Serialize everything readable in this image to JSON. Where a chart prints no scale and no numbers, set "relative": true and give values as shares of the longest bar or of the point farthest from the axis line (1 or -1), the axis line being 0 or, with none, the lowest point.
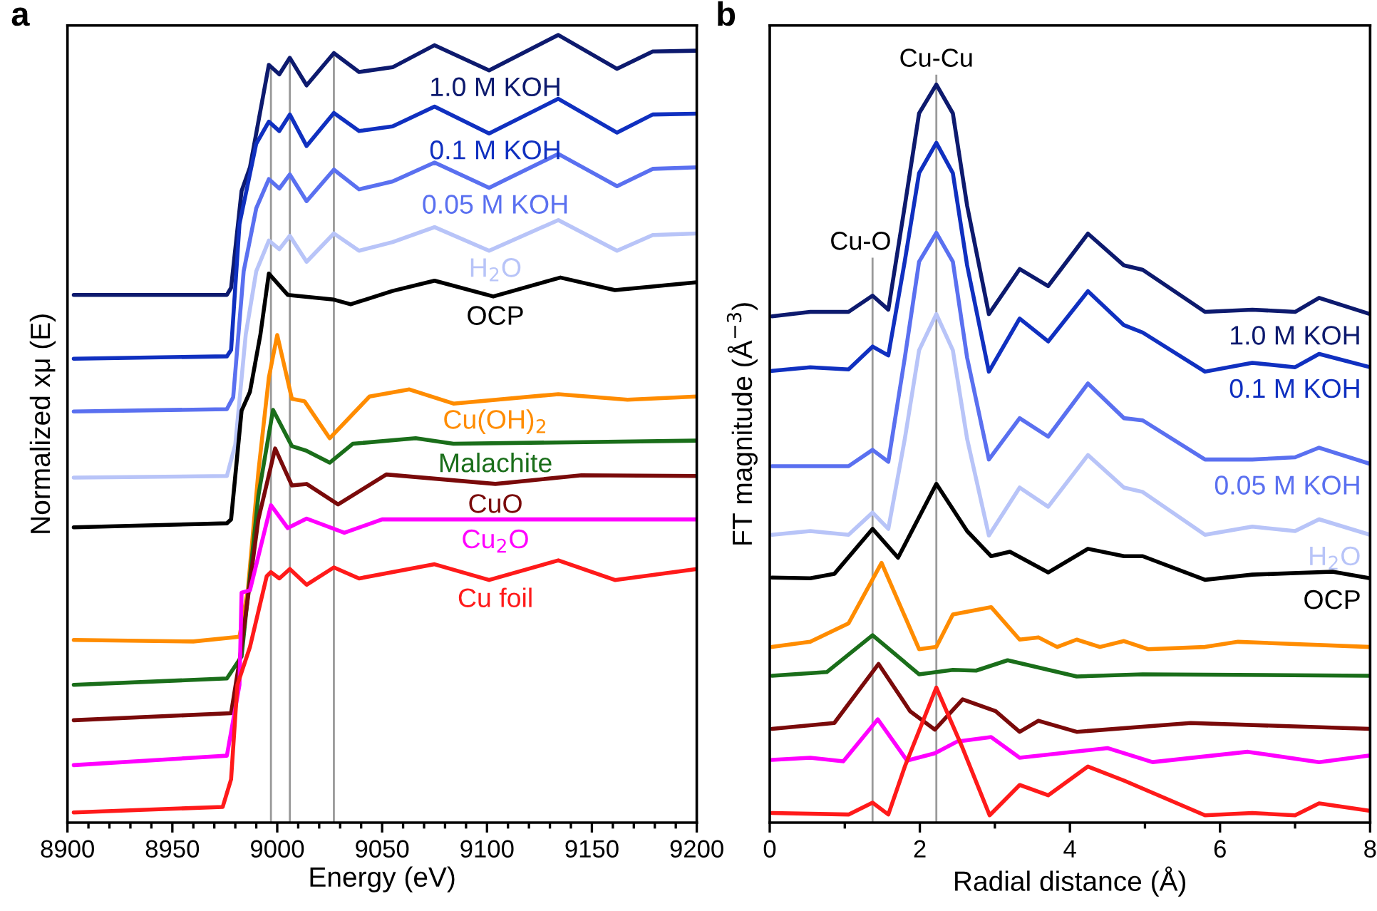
{
  "chart_data": [
    {
      "type": "line",
      "title": "a",
      "xlabel": "Energy (eV)",
      "ylabel": "Normalized xμ (E)",
      "relative": true,
      "xlim": [
        8900,
        9200
      ],
      "xticks": [
        8900,
        {
          "value": 8910,
          "label": null
        },
        {
          "value": 8920,
          "label": null
        },
        {
          "value": 8930,
          "label": null
        },
        {
          "value": 8940,
          "label": null
        },
        8950,
        {
          "value": 8960,
          "label": null
        },
        {
          "value": 8970,
          "label": null
        },
        {
          "value": 8980,
          "label": null
        },
        {
          "value": 8990,
          "label": null
        },
        9000,
        {
          "value": 9010,
          "label": null
        },
        {
          "value": 9020,
          "label": null
        },
        {
          "value": 9030,
          "label": null
        },
        {
          "value": 9040,
          "label": null
        },
        9050,
        {
          "value": 9060,
          "label": null
        },
        {
          "value": 9070,
          "label": null
        },
        {
          "value": 9080,
          "label": null
        },
        {
          "value": 9090,
          "label": null
        },
        9100,
        {
          "value": 9110,
          "label": null
        },
        {
          "value": 9120,
          "label": null
        },
        {
          "value": 9130,
          "label": null
        },
        {
          "value": 9140,
          "label": null
        },
        9150,
        {
          "value": 9160,
          "label": null
        },
        {
          "value": 9170,
          "label": null
        },
        {
          "value": 9180,
          "label": null
        },
        {
          "value": 9190,
          "label": null
        },
        9200
      ],
      "ref_lines": [
        {
          "axis": "x",
          "value": 8997,
          "color": "#999999"
        },
        {
          "axis": "x",
          "value": 9006,
          "color": "#999999"
        },
        {
          "axis": "x",
          "value": 9027,
          "color": "#999999"
        }
      ],
      "series": [
        {
          "name": "1.0 M KOH",
          "color": "#0d1a6e",
          "x": [
            8903,
            8976,
            8978,
            8983,
            8987,
            8996,
            9001,
            9006,
            9014,
            9027,
            9039,
            9055,
            9075,
            9101,
            9134,
            9162,
            9179,
            9200
          ],
          "values": [
            0.67,
            0.67,
            0.679,
            0.802,
            0.832,
            0.962,
            0.95,
            0.971,
            0.936,
            0.977,
            0.953,
            0.959,
            0.987,
            0.955,
            1.0,
            0.957,
            0.979,
            0.98
          ]
        },
        {
          "name": "0.1 M KOH",
          "color": "#1030c0",
          "x": [
            8903,
            8976,
            8978,
            8982,
            8990,
            8996,
            9001,
            9006,
            9014,
            9027,
            9039,
            9055,
            9075,
            9101,
            9134,
            9162,
            9179,
            9200
          ],
          "values": [
            0.589,
            0.592,
            0.6,
            0.76,
            0.862,
            0.89,
            0.878,
            0.899,
            0.859,
            0.901,
            0.878,
            0.884,
            0.909,
            0.875,
            0.919,
            0.876,
            0.899,
            0.9
          ]
        },
        {
          "name": "0.05 M KOH",
          "color": "#5a70f0",
          "x": [
            8903,
            8976,
            8979,
            8984,
            8990,
            8996,
            9001,
            9006,
            9014,
            9027,
            9039,
            9055,
            9075,
            9101,
            9134,
            9162,
            9179,
            9200
          ],
          "values": [
            0.522,
            0.525,
            0.54,
            0.7,
            0.78,
            0.817,
            0.805,
            0.823,
            0.789,
            0.829,
            0.804,
            0.814,
            0.838,
            0.806,
            0.849,
            0.808,
            0.83,
            0.832
          ]
        },
        {
          "name": "H$_{2}$O",
          "color": "#b8c4f8",
          "x": [
            8903,
            8976,
            8980,
            8985,
            8990,
            8996,
            9001,
            9006,
            9014,
            9027,
            9039,
            9055,
            9075,
            9101,
            9134,
            9162,
            9179,
            9200
          ],
          "values": [
            0.438,
            0.44,
            0.48,
            0.62,
            0.7,
            0.739,
            0.728,
            0.745,
            0.712,
            0.748,
            0.726,
            0.737,
            0.756,
            0.726,
            0.765,
            0.726,
            0.746,
            0.748
          ]
        },
        {
          "name": "OCP",
          "color": "#000000",
          "x": [
            8903,
            8976,
            8978,
            8983,
            8987,
            8992,
            8996,
            9005,
            9027,
            9035,
            9055,
            9075,
            9103,
            9135,
            9161,
            9200
          ],
          "values": [
            0.375,
            0.38,
            0.385,
            0.523,
            0.547,
            0.62,
            0.697,
            0.67,
            0.664,
            0.658,
            0.675,
            0.688,
            0.668,
            0.692,
            0.676,
            0.686
          ]
        },
        {
          "name": "Cu(OH)$_{2}$",
          "color": "#ff8c00",
          "x": [
            8903,
            8960,
            8982,
            8986,
            8991,
            8996,
            9000,
            9007,
            9013,
            9025,
            9044,
            9063,
            9084,
            9134,
            9167,
            9200
          ],
          "values": [
            0.232,
            0.23,
            0.236,
            0.295,
            0.445,
            0.565,
            0.619,
            0.538,
            0.535,
            0.488,
            0.541,
            0.55,
            0.532,
            0.544,
            0.537,
            0.541
          ]
        },
        {
          "name": "Malachite",
          "color": "#1a6e1a",
          "x": [
            8903,
            8976,
            8983,
            8991,
            8998,
            9007,
            9014,
            9025,
            9036,
            9066,
            9084,
            9200
          ],
          "values": [
            0.175,
            0.183,
            0.211,
            0.415,
            0.524,
            0.478,
            0.472,
            0.457,
            0.481,
            0.488,
            0.481,
            0.485
          ]
        },
        {
          "name": "CuO",
          "color": "#7a0a0a",
          "x": [
            8903,
            8978,
            8982,
            8991,
            8999,
            9007,
            9014,
            9029,
            9052,
            9104,
            9145,
            9200
          ],
          "values": [
            0.13,
            0.139,
            0.205,
            0.385,
            0.475,
            0.428,
            0.43,
            0.404,
            0.442,
            0.43,
            0.441,
            0.44
          ]
        },
        {
          "name": "Cu$_{2}$O",
          "color": "#ff00ff",
          "x": [
            8903,
            8976,
            8982,
            8983,
            8987,
            8997,
            9005,
            9014,
            9032,
            9050,
            9200
          ],
          "values": [
            0.073,
            0.085,
            0.175,
            0.292,
            0.295,
            0.403,
            0.374,
            0.386,
            0.368,
            0.385,
            0.385
          ]
        },
        {
          "name": "Cu foil",
          "color": "#ff1a1a",
          "x": [
            8903,
            8974,
            8978,
            8981,
            8987,
            8995,
            8997,
            9001,
            9006,
            9014,
            9027,
            9039,
            9075,
            9101,
            9134,
            9161,
            9200
          ],
          "values": [
            0.013,
            0.02,
            0.055,
            0.175,
            0.223,
            0.313,
            0.318,
            0.31,
            0.322,
            0.302,
            0.324,
            0.31,
            0.328,
            0.308,
            0.333,
            0.308,
            0.322
          ]
        }
      ]
    },
    {
      "type": "line",
      "title": "b",
      "xlabel": "Radial distance (Å)",
      "ylabel": "FT magnitude (Å$^{−3}$)",
      "relative": true,
      "xlim": [
        0,
        8
      ],
      "xticks": [
        0,
        {
          "value": 1,
          "label": null
        },
        2,
        {
          "value": 3,
          "label": null
        },
        4,
        {
          "value": 5,
          "label": null
        },
        6,
        {
          "value": 7,
          "label": null
        },
        8
      ],
      "ref_lines": [
        {
          "axis": "x",
          "value": 1.37,
          "label": "Cu-O",
          "color": "#999999"
        },
        {
          "axis": "x",
          "value": 2.22,
          "label": "Cu-Cu",
          "color": "#999999"
        }
      ],
      "series": [
        {
          "name": "1.0 M KOH",
          "color": "#0d1a6e",
          "x": [
            0.03,
            0.54,
            1.05,
            1.37,
            1.58,
            1.8,
            1.99,
            2.22,
            2.44,
            2.63,
            2.92,
            3.33,
            3.71,
            4.24,
            4.72,
            4.97,
            5.8,
            6.43,
            7.0,
            7.32,
            8.0
          ],
          "values": [
            0.686,
            0.692,
            0.692,
            0.714,
            0.695,
            0.836,
            0.961,
            1.0,
            0.961,
            0.836,
            0.689,
            0.75,
            0.727,
            0.798,
            0.755,
            0.749,
            0.692,
            0.695,
            0.692,
            0.711,
            0.689
          ]
        },
        {
          "name": "0.1 M KOH",
          "color": "#1030c0",
          "x": [
            0.03,
            0.54,
            1.05,
            1.37,
            1.58,
            1.8,
            1.99,
            2.22,
            2.44,
            2.63,
            2.92,
            3.33,
            3.71,
            4.24,
            4.72,
            4.97,
            5.8,
            6.43,
            7.0,
            7.32,
            8.0
          ],
          "values": [
            0.612,
            0.617,
            0.614,
            0.645,
            0.633,
            0.761,
            0.88,
            0.921,
            0.88,
            0.755,
            0.611,
            0.683,
            0.652,
            0.72,
            0.674,
            0.664,
            0.611,
            0.623,
            0.617,
            0.635,
            0.617
          ]
        },
        {
          "name": "0.05 M KOH",
          "color": "#5a70f0",
          "x": [
            0.03,
            0.54,
            1.05,
            1.37,
            1.58,
            1.8,
            1.99,
            2.22,
            2.44,
            2.63,
            2.92,
            3.33,
            3.71,
            4.24,
            4.72,
            4.97,
            5.8,
            6.43,
            7.0,
            7.32,
            8.0
          ],
          "values": [
            0.483,
            0.483,
            0.483,
            0.505,
            0.489,
            0.63,
            0.76,
            0.799,
            0.76,
            0.63,
            0.492,
            0.548,
            0.523,
            0.595,
            0.548,
            0.545,
            0.492,
            0.492,
            0.495,
            0.508,
            0.486
          ]
        },
        {
          "name": "H$_{2}$O",
          "color": "#b8c4f8",
          "x": [
            0.03,
            0.54,
            1.05,
            1.37,
            1.58,
            1.8,
            1.99,
            2.22,
            2.44,
            2.63,
            2.92,
            3.33,
            3.71,
            4.24,
            4.72,
            4.97,
            5.8,
            6.43,
            7.0,
            7.32,
            8.0
          ],
          "values": [
            0.39,
            0.395,
            0.39,
            0.42,
            0.398,
            0.52,
            0.64,
            0.689,
            0.64,
            0.52,
            0.389,
            0.454,
            0.428,
            0.498,
            0.454,
            0.448,
            0.39,
            0.401,
            0.395,
            0.411,
            0.39
          ]
        },
        {
          "name": "OCP",
          "color": "#000000",
          "x": [
            0.03,
            0.54,
            0.86,
            1.37,
            1.71,
            2.22,
            2.63,
            2.95,
            3.2,
            3.71,
            4.24,
            4.72,
            4.97,
            5.8,
            6.43,
            7.5,
            8.0
          ],
          "values": [
            0.332,
            0.331,
            0.337,
            0.398,
            0.359,
            0.459,
            0.395,
            0.361,
            0.367,
            0.339,
            0.371,
            0.361,
            0.361,
            0.329,
            0.336,
            0.34,
            0.331
          ]
        },
        {
          "color": "#ff8c00",
          "x": [
            0.03,
            0.54,
            1.05,
            1.49,
            1.99,
            2.22,
            2.44,
            2.95,
            3.33,
            3.58,
            3.83,
            4.09,
            4.4,
            4.72,
            5.04,
            5.8,
            6.24,
            8.0
          ],
          "values": [
            0.238,
            0.245,
            0.27,
            0.352,
            0.235,
            0.238,
            0.282,
            0.292,
            0.248,
            0.251,
            0.238,
            0.248,
            0.238,
            0.246,
            0.235,
            0.238,
            0.245,
            0.238
          ]
        },
        {
          "color": "#1a6e1a",
          "x": [
            0.03,
            0.76,
            1.37,
            1.99,
            2.44,
            2.75,
            3.17,
            4.09,
            4.97,
            8.0
          ],
          "values": [
            0.199,
            0.204,
            0.254,
            0.201,
            0.207,
            0.206,
            0.22,
            0.198,
            0.201,
            0.199
          ]
        },
        {
          "color": "#7a0a0a",
          "x": [
            0.03,
            0.86,
            1.45,
            1.87,
            2.2,
            2.57,
            3.01,
            3.33,
            3.58,
            4.09,
            5.61,
            8.0
          ],
          "values": [
            0.127,
            0.135,
            0.215,
            0.151,
            0.126,
            0.167,
            0.151,
            0.123,
            0.138,
            0.123,
            0.135,
            0.127
          ]
        },
        {
          "color": "#ff00ff",
          "x": [
            0.03,
            0.54,
            0.98,
            1.44,
            1.83,
            2.2,
            2.5,
            2.95,
            3.33,
            4.5,
            5.1,
            6.37,
            7.32,
            8.0
          ],
          "values": [
            0.085,
            0.088,
            0.083,
            0.14,
            0.084,
            0.094,
            0.11,
            0.116,
            0.088,
            0.101,
            0.082,
            0.096,
            0.082,
            0.091
          ]
        },
        {
          "color": "#ff1a1a",
          "x": [
            0.03,
            1.05,
            1.37,
            1.58,
            1.8,
            2.22,
            2.57,
            2.93,
            3.33,
            3.71,
            4.24,
            4.72,
            5.8,
            6.43,
            7.0,
            7.32,
            8.0
          ],
          "values": [
            0.013,
            0.011,
            0.027,
            0.011,
            0.076,
            0.183,
            0.101,
            0.01,
            0.051,
            0.037,
            0.076,
            0.057,
            0.01,
            0.013,
            0.01,
            0.026,
            0.016
          ]
        }
      ]
    }
  ]
}
